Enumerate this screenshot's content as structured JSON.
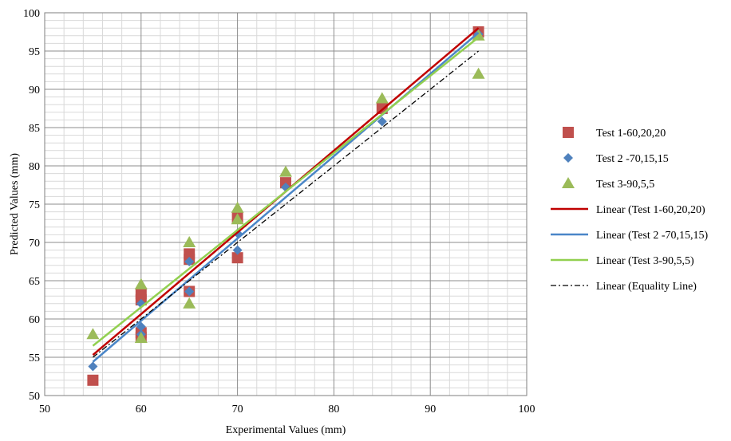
{
  "chart_data": {
    "type": "scatter",
    "title": "",
    "xlabel": "Experimental Values (mm)",
    "ylabel": "Predicted Values (mm)",
    "xlim": [
      50,
      100
    ],
    "ylim": [
      50,
      100
    ],
    "x_ticks": [
      "50",
      "60",
      "70",
      "80",
      "90",
      "100"
    ],
    "y_ticks": [
      "50",
      "55",
      "60",
      "65",
      "70",
      "75",
      "80",
      "85",
      "90",
      "95",
      "100"
    ],
    "grid": true,
    "legend_position": "right",
    "series": [
      {
        "name": "Test 1-60,20,20",
        "marker": "square",
        "color": "#c0504d",
        "points": [
          [
            55,
            52
          ],
          [
            60,
            63.3
          ],
          [
            60,
            62.5
          ],
          [
            60,
            58.2
          ],
          [
            60,
            57.6
          ],
          [
            65,
            68.5
          ],
          [
            65,
            67.8
          ],
          [
            65,
            63.6
          ],
          [
            70,
            73.2
          ],
          [
            70,
            68
          ],
          [
            75,
            77.8
          ],
          [
            85,
            87.5
          ],
          [
            95,
            97.5
          ]
        ]
      },
      {
        "name": "Test 2 -70,15,15",
        "marker": "diamond",
        "color": "#4f81bd",
        "points": [
          [
            55,
            53.8
          ],
          [
            60,
            62
          ],
          [
            60,
            59
          ],
          [
            60,
            58
          ],
          [
            65,
            67.5
          ],
          [
            65,
            63.6
          ],
          [
            70,
            71.2
          ],
          [
            70,
            69
          ],
          [
            75,
            77.2
          ],
          [
            85,
            85.8
          ],
          [
            95,
            97.2
          ]
        ]
      },
      {
        "name": "Test 3-90,5,5",
        "marker": "triangle",
        "color": "#9bbb59",
        "points": [
          [
            55,
            58
          ],
          [
            60,
            64.5
          ],
          [
            60,
            57.5
          ],
          [
            65,
            70
          ],
          [
            65,
            62
          ],
          [
            70,
            74.5
          ],
          [
            70,
            73
          ],
          [
            75,
            79.2
          ],
          [
            85,
            88.8
          ],
          [
            95,
            92
          ],
          [
            95,
            97
          ]
        ]
      }
    ],
    "trendlines": [
      {
        "name": "Linear (Test 1-60,20,20)",
        "color": "#c00000",
        "style": "solid",
        "points": [
          [
            55,
            55.3
          ],
          [
            95,
            98
          ]
        ]
      },
      {
        "name": "Linear (Test 2 -70,15,15)",
        "color": "#4a86c8",
        "style": "solid",
        "points": [
          [
            55,
            54.4
          ],
          [
            95,
            97.4
          ]
        ]
      },
      {
        "name": "Linear (Test 3-90,5,5)",
        "color": "#92d050",
        "style": "solid",
        "points": [
          [
            55,
            56.5
          ],
          [
            95,
            96.8
          ]
        ]
      },
      {
        "name": "Linear (Equality Line)",
        "color": "#000000",
        "style": "dashdot",
        "points": [
          [
            55,
            55
          ],
          [
            95,
            95
          ]
        ]
      }
    ]
  }
}
